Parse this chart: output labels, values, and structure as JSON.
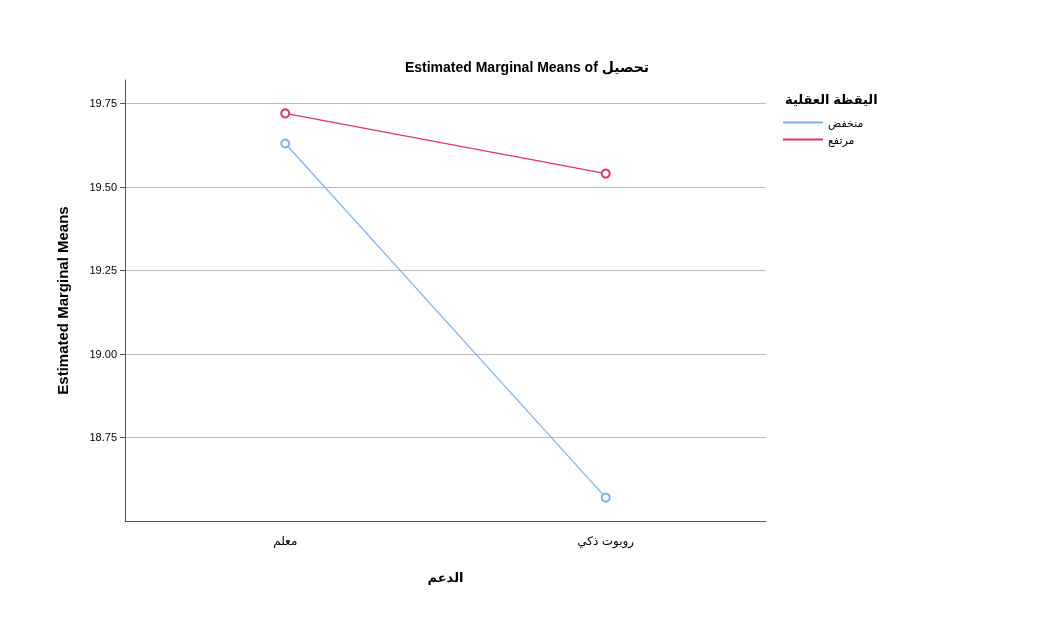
{
  "chart_data": {
    "type": "line",
    "title": "Estimated Marginal Means of تحصيل",
    "xlabel": "الدعم",
    "ylabel": "Estimated Marginal Means",
    "legend_title": "اليقظة العقلية",
    "categories": [
      "معلم",
      "روبوت ذكي"
    ],
    "series": [
      {
        "name": "منخفض",
        "color": "#7eb0ea",
        "values": [
          19.63,
          18.57
        ]
      },
      {
        "name": "مرتفع",
        "color": "#d8385a",
        "values": [
          19.72,
          19.54
        ]
      }
    ],
    "ylim": [
      18.5,
      19.82
    ],
    "yticks": [
      18.75,
      {
        "value": 19,
        "label": "19.00"
      },
      19.25,
      {
        "value": 19.5,
        "label": "19.50"
      },
      19.75
    ],
    "grid": "y",
    "legend": "top right",
    "marker": "circle",
    "line_style": "solid"
  }
}
